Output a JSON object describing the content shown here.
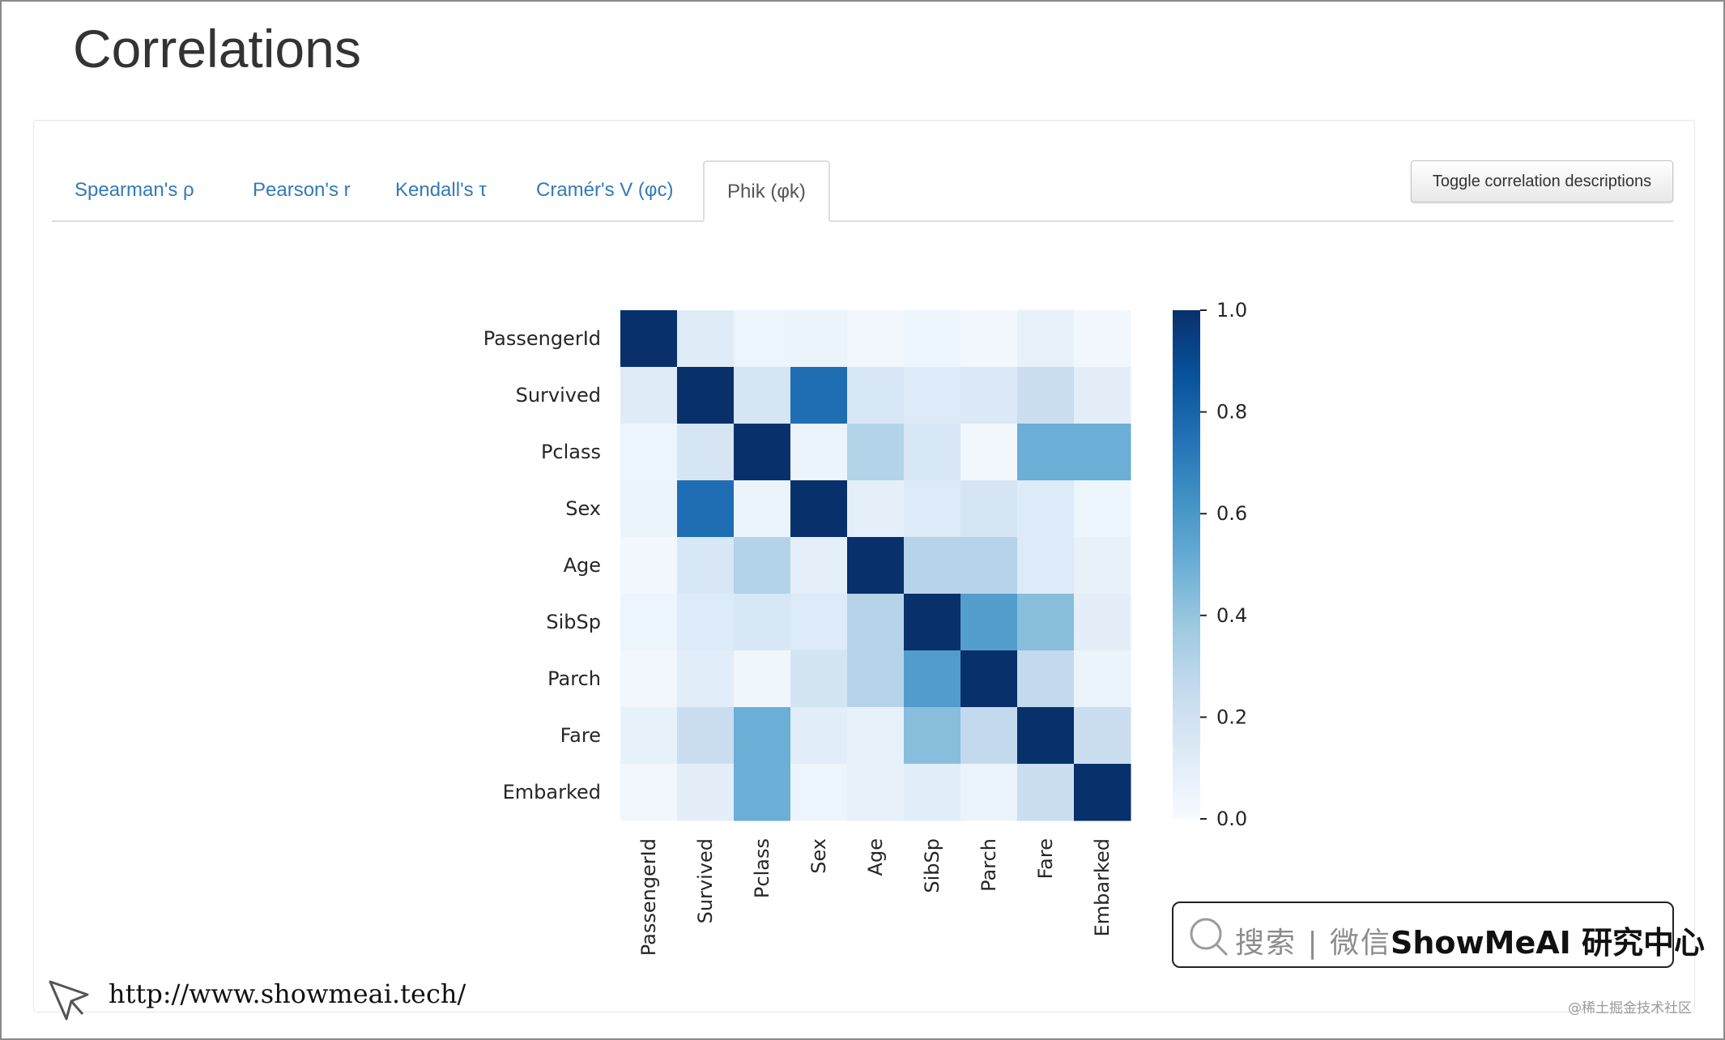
{
  "page": {
    "title": "Correlations"
  },
  "tabs": [
    {
      "label": "Spearman's ρ",
      "active": false
    },
    {
      "label": "Pearson's r",
      "active": false
    },
    {
      "label": "Kendall's τ",
      "active": false
    },
    {
      "label": "Cramér's V (φc)",
      "active": false
    },
    {
      "label": "Phik (φk)",
      "active": true
    }
  ],
  "toggle_button": {
    "label": "Toggle correlation descriptions"
  },
  "chart_data": {
    "type": "heatmap",
    "rows": [
      "PassengerId",
      "Survived",
      "Pclass",
      "Sex",
      "Age",
      "SibSp",
      "Parch",
      "Fare",
      "Embarked"
    ],
    "columns": [
      "PassengerId",
      "Survived",
      "Pclass",
      "Sex",
      "Age",
      "SibSp",
      "Parch",
      "Fare",
      "Embarked"
    ],
    "values": [
      [
        1.0,
        0.12,
        0.05,
        0.06,
        0.03,
        0.05,
        0.03,
        0.08,
        0.03
      ],
      [
        0.12,
        1.0,
        0.17,
        0.76,
        0.16,
        0.13,
        0.14,
        0.23,
        0.1
      ],
      [
        0.05,
        0.17,
        1.0,
        0.06,
        0.31,
        0.16,
        0.03,
        0.5,
        0.5
      ],
      [
        0.06,
        0.76,
        0.06,
        1.0,
        0.09,
        0.13,
        0.17,
        0.13,
        0.05
      ],
      [
        0.03,
        0.16,
        0.31,
        0.09,
        1.0,
        0.3,
        0.3,
        0.13,
        0.08
      ],
      [
        0.05,
        0.13,
        0.16,
        0.13,
        0.3,
        1.0,
        0.57,
        0.43,
        0.1
      ],
      [
        0.03,
        0.11,
        0.04,
        0.18,
        0.3,
        0.58,
        1.0,
        0.26,
        0.06
      ],
      [
        0.08,
        0.23,
        0.5,
        0.11,
        0.08,
        0.43,
        0.26,
        1.0,
        0.23
      ],
      [
        0.03,
        0.1,
        0.5,
        0.05,
        0.08,
        0.11,
        0.06,
        0.23,
        1.0
      ]
    ],
    "color_scale": {
      "name": "Blues",
      "min": 0.0,
      "max": 1.0,
      "low_color": "#f7fbff",
      "high_color": "#08306b"
    },
    "colorbar_ticks": [
      "0.0",
      "0.2",
      "0.4",
      "0.6",
      "0.8",
      "1.0"
    ]
  },
  "watermark": {
    "search_label": "搜索 | 微信",
    "brand": "ShowMeAI 研究中心",
    "url": "http://www.showmeai.tech/",
    "site_mark": "@稀土掘金技术社区"
  }
}
